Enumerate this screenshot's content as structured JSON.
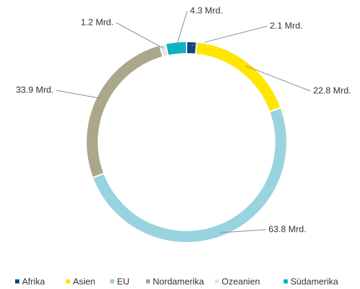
{
  "chart_data": {
    "type": "donut",
    "categories": [
      "Afrika",
      "Asien",
      "EU",
      "Nordamerika",
      "Ozeanien",
      "Südamerika"
    ],
    "values": [
      2.1,
      22.8,
      63.8,
      33.9,
      1.2,
      4.3
    ],
    "value_labels": [
      "2.1 Mrd.",
      "22.8 Mrd.",
      "63.8 Mrd.",
      "33.9 Mrd.",
      "1.2 Mrd.",
      "4.3 Mrd."
    ],
    "colors": [
      "#0d4a7a",
      "#ffe500",
      "#99d3e0",
      "#aba78b",
      "#e4e4e4",
      "#0ab2c2"
    ],
    "legend": "bottom"
  }
}
